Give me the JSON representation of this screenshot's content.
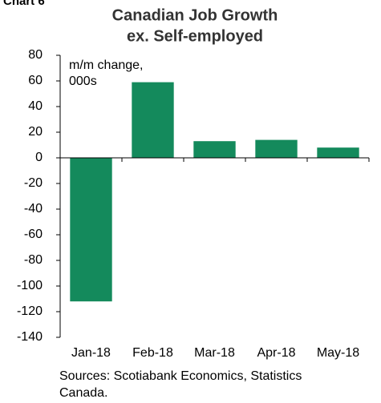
{
  "chart_data": {
    "type": "bar",
    "label": "Chart 6",
    "title_lines": [
      "Canadian Job Growth",
      "ex. Self-employed"
    ],
    "annotation_lines": [
      "m/m change,",
      "000s"
    ],
    "source_lines": [
      "Sources: Scotiabank Economics, Statistics",
      "Canada."
    ],
    "categories": [
      "Jan-18",
      "Feb-18",
      "Mar-18",
      "Apr-18",
      "May-18"
    ],
    "values": [
      -112,
      59,
      13,
      14,
      8
    ],
    "color": "#148a5c",
    "ylim": [
      -140,
      80
    ],
    "yticks": [
      -140,
      -120,
      -100,
      -80,
      -60,
      -40,
      -20,
      0,
      20,
      40,
      60,
      80
    ]
  }
}
